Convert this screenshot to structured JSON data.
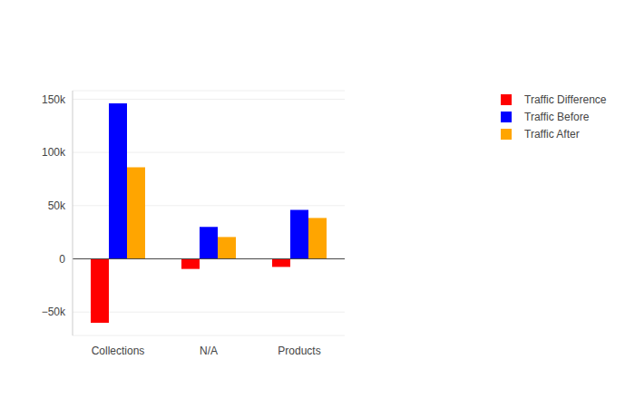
{
  "chart_data": {
    "type": "bar",
    "categories": [
      "Collections",
      "N/A",
      "Products"
    ],
    "series": [
      {
        "name": "Traffic Difference",
        "color": "#ff0000",
        "values": [
          -60000,
          -9500,
          -7600
        ]
      },
      {
        "name": "Traffic Before",
        "color": "#0000ff",
        "values": [
          146000,
          30000,
          46000
        ]
      },
      {
        "name": "Traffic After",
        "color": "#ffa500",
        "values": [
          86000,
          20500,
          38400
        ]
      }
    ],
    "ylim": [
      -72000,
      158000
    ],
    "yticks": [
      {
        "value": -50000,
        "label": "−50k"
      },
      0,
      {
        "value": 50000,
        "label": "50k"
      },
      {
        "value": 100000,
        "label": "100k"
      },
      {
        "value": 150000,
        "label": "150k"
      }
    ],
    "grid": true,
    "legend": "right"
  }
}
